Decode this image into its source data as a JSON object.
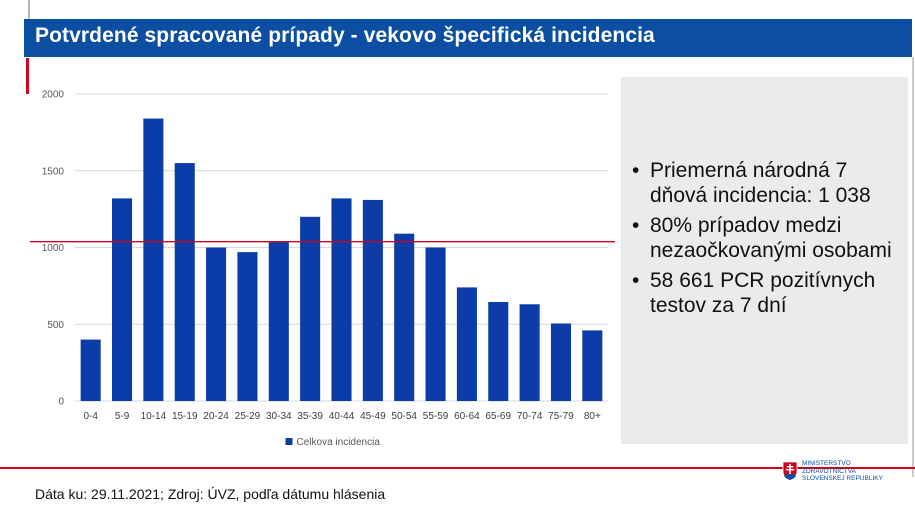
{
  "slide": {
    "title": "Potvrdené spracované prípady - vekovo špecifická incidencia",
    "bullets": [
      "Priemerná národná 7 dňová incidencia: 1 038",
      "80% prípadov medzi nezaočkovanými osobami",
      "58 661 PCR pozitívnych testov za 7 dní"
    ],
    "source": "Dáta ku: 29.11.2021; Zdroj: ÚVZ, podľa dátumu hlásenia",
    "logo": {
      "lines": [
        "MINISTERSTVO",
        "ZDRAVOTNÍCTVA",
        "SLOVENSKEJ REPUBLIKY"
      ],
      "icon": "slovak-coat-of-arms-icon"
    }
  },
  "chart_data": {
    "type": "bar",
    "categories": [
      "0-4",
      "5-9",
      "10-14",
      "15-19",
      "20-24",
      "25-29",
      "30-34",
      "35-39",
      "40-44",
      "45-49",
      "50-54",
      "55-59",
      "60-64",
      "65-69",
      "70-74",
      "75-79",
      "80+"
    ],
    "series": [
      {
        "name": "Celkova incidencia",
        "values": [
          400,
          1320,
          1840,
          1550,
          1000,
          970,
          1035,
          1200,
          1320,
          1310,
          1090,
          1000,
          740,
          645,
          630,
          505,
          460
        ],
        "color": "#0b3ca8"
      }
    ],
    "reference_line": {
      "value": 1038,
      "color": "#d0021b"
    },
    "yticks": [
      0,
      500,
      1000,
      1500,
      2000
    ],
    "ylim": [
      0,
      2000
    ],
    "grid": true,
    "legend": "bottom"
  }
}
